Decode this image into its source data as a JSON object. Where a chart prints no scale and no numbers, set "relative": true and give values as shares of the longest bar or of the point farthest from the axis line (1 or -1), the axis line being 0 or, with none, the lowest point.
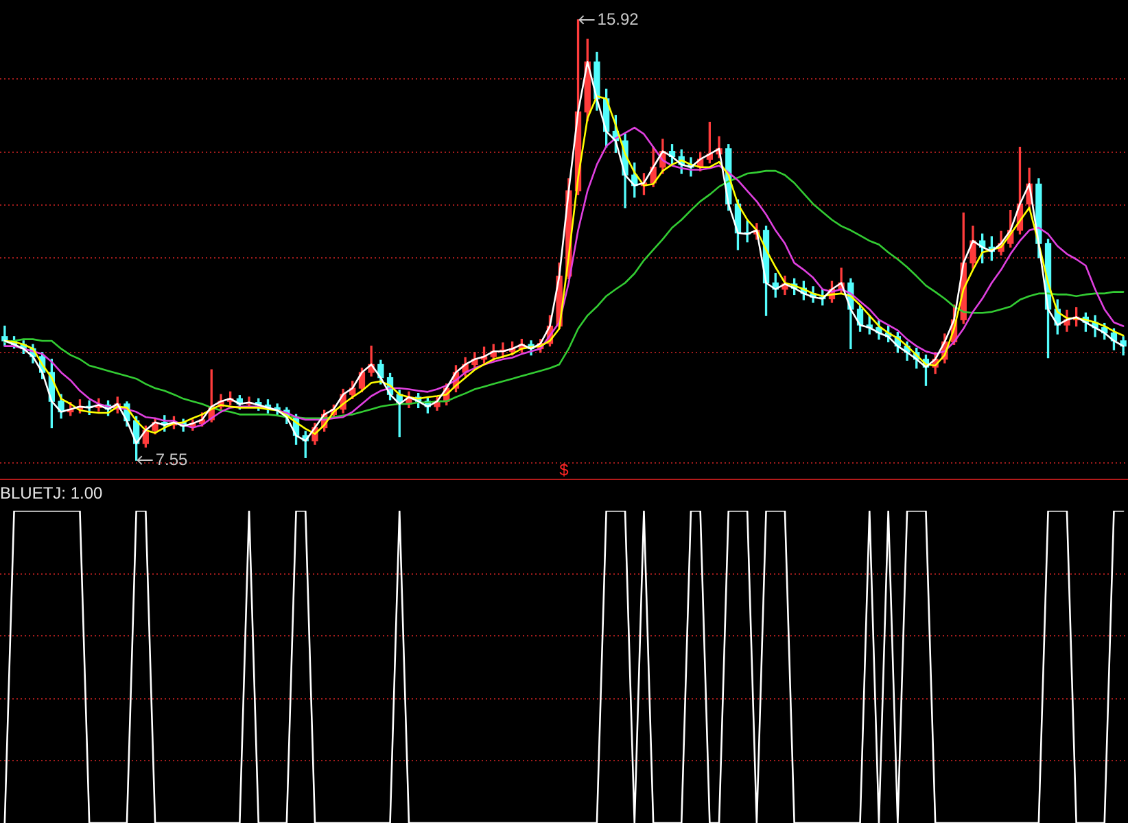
{
  "chart_data": [
    {
      "type": "candlestick",
      "categories": [
        null,
        null,
        null,
        null,
        null,
        null,
        null,
        null,
        null,
        null,
        null,
        null,
        null,
        null,
        null,
        null,
        null,
        null,
        null,
        null,
        null,
        null,
        null,
        null,
        null,
        null,
        null,
        null,
        null,
        null,
        null,
        null,
        null,
        null,
        null,
        null,
        null,
        null,
        null,
        null,
        null,
        null,
        null,
        null,
        null,
        null,
        null,
        null,
        null,
        null,
        null,
        null,
        null,
        null,
        null,
        null,
        null,
        null,
        null,
        null,
        null,
        null,
        null,
        null,
        null,
        null,
        null,
        null,
        null,
        null,
        null,
        null,
        null,
        null,
        null,
        null,
        null,
        null,
        null,
        null,
        null,
        null,
        null,
        null,
        null,
        null,
        null,
        null,
        null,
        null,
        null,
        null,
        null,
        null,
        null,
        null,
        null,
        null,
        null,
        null,
        null,
        null,
        null,
        null,
        null,
        null,
        null,
        null,
        null,
        null,
        null,
        null,
        null,
        null,
        null,
        null,
        null,
        null,
        null,
        null
      ],
      "ohlc": [
        [
          9.9,
          10.1,
          9.72,
          9.82
        ],
        [
          9.82,
          9.9,
          9.68,
          9.75
        ],
        [
          9.75,
          9.82,
          9.58,
          9.67
        ],
        [
          9.67,
          9.75,
          9.4,
          9.52
        ],
        [
          9.52,
          9.6,
          9.1,
          9.22
        ],
        [
          9.22,
          9.47,
          8.17,
          8.67
        ],
        [
          8.67,
          8.8,
          8.35,
          8.47
        ],
        [
          8.47,
          8.65,
          8.4,
          8.52
        ],
        [
          8.52,
          8.7,
          8.45,
          8.57
        ],
        [
          8.57,
          8.68,
          8.42,
          8.55
        ],
        [
          8.55,
          8.72,
          8.48,
          8.6
        ],
        [
          8.6,
          8.68,
          8.4,
          8.52
        ],
        [
          8.52,
          8.75,
          8.45,
          8.62
        ],
        [
          8.62,
          8.66,
          8.2,
          8.3
        ],
        [
          8.3,
          8.38,
          7.55,
          7.87
        ],
        [
          7.87,
          8.2,
          7.8,
          8.12
        ],
        [
          8.12,
          8.35,
          8.05,
          8.27
        ],
        [
          8.27,
          8.4,
          8.1,
          8.22
        ],
        [
          8.22,
          8.38,
          8.15,
          8.27
        ],
        [
          8.27,
          8.33,
          8.1,
          8.2
        ],
        [
          8.2,
          8.32,
          8.12,
          8.25
        ],
        [
          8.25,
          8.45,
          8.2,
          8.32
        ],
        [
          8.32,
          9.27,
          8.28,
          8.57
        ],
        [
          8.57,
          8.8,
          8.5,
          8.67
        ],
        [
          8.67,
          8.85,
          8.6,
          8.72
        ],
        [
          8.72,
          8.78,
          8.52,
          8.62
        ],
        [
          8.62,
          8.75,
          8.55,
          8.65
        ],
        [
          8.65,
          8.72,
          8.5,
          8.6
        ],
        [
          8.6,
          8.7,
          8.45,
          8.55
        ],
        [
          8.55,
          8.62,
          8.4,
          8.5
        ],
        [
          8.5,
          8.55,
          8.25,
          8.37
        ],
        [
          8.37,
          8.42,
          7.85,
          8.02
        ],
        [
          8.02,
          8.1,
          7.6,
          7.92
        ],
        [
          7.92,
          8.25,
          7.85,
          8.17
        ],
        [
          8.17,
          8.5,
          8.1,
          8.42
        ],
        [
          8.42,
          8.6,
          8.35,
          8.52
        ],
        [
          8.52,
          8.9,
          8.45,
          8.8
        ],
        [
          8.8,
          9.05,
          8.72,
          8.92
        ],
        [
          8.92,
          9.3,
          8.85,
          9.22
        ],
        [
          9.22,
          9.72,
          9.15,
          9.37
        ],
        [
          9.37,
          9.45,
          9.0,
          9.12
        ],
        [
          9.12,
          9.2,
          8.7,
          8.8
        ],
        [
          8.8,
          8.88,
          8.0,
          8.62
        ],
        [
          8.62,
          8.85,
          8.55,
          8.75
        ],
        [
          8.75,
          8.82,
          8.55,
          8.67
        ],
        [
          8.67,
          8.75,
          8.45,
          8.57
        ],
        [
          8.57,
          8.75,
          8.5,
          8.67
        ],
        [
          8.67,
          9.0,
          8.6,
          8.92
        ],
        [
          8.92,
          9.35,
          8.85,
          9.22
        ],
        [
          9.22,
          9.5,
          9.15,
          9.37
        ],
        [
          9.37,
          9.6,
          9.3,
          9.47
        ],
        [
          9.47,
          9.7,
          9.4,
          9.52
        ],
        [
          9.52,
          9.75,
          9.45,
          9.62
        ],
        [
          9.62,
          9.78,
          9.5,
          9.62
        ],
        [
          9.62,
          9.8,
          9.55,
          9.67
        ],
        [
          9.67,
          9.85,
          9.6,
          9.75
        ],
        [
          9.75,
          9.82,
          9.55,
          9.67
        ],
        [
          9.67,
          9.85,
          9.6,
          9.77
        ],
        [
          9.77,
          10.3,
          9.72,
          10.1
        ],
        [
          10.1,
          11.3,
          10.05,
          11.05
        ],
        [
          11.05,
          12.9,
          11.0,
          12.67
        ],
        [
          12.67,
          15.92,
          12.6,
          14.17
        ],
        [
          14.17,
          15.55,
          14.0,
          15.12
        ],
        [
          15.12,
          15.3,
          14.2,
          14.42
        ],
        [
          14.42,
          14.6,
          13.5,
          13.8
        ],
        [
          13.8,
          14.1,
          13.4,
          13.62
        ],
        [
          13.62,
          13.75,
          12.35,
          12.97
        ],
        [
          12.97,
          13.2,
          12.55,
          12.77
        ],
        [
          12.77,
          13.0,
          12.6,
          12.82
        ],
        [
          12.82,
          13.5,
          12.75,
          13.12
        ],
        [
          13.12,
          13.65,
          13.0,
          13.42
        ],
        [
          13.42,
          13.55,
          13.15,
          13.32
        ],
        [
          13.32,
          13.45,
          13.0,
          13.17
        ],
        [
          13.17,
          13.3,
          12.95,
          13.12
        ],
        [
          13.12,
          13.4,
          13.05,
          13.27
        ],
        [
          13.27,
          13.97,
          13.2,
          13.37
        ],
        [
          13.37,
          13.7,
          13.3,
          13.47
        ],
        [
          13.47,
          13.55,
          12.3,
          12.42
        ],
        [
          12.42,
          12.5,
          11.55,
          11.87
        ],
        [
          11.87,
          12.1,
          11.7,
          11.85
        ],
        [
          11.85,
          12.05,
          11.75,
          11.92
        ],
        [
          11.92,
          12.0,
          10.3,
          10.92
        ],
        [
          10.92,
          11.1,
          10.65,
          10.8
        ],
        [
          10.8,
          11.05,
          10.7,
          10.9
        ],
        [
          10.9,
          11.0,
          10.7,
          10.82
        ],
        [
          10.82,
          10.95,
          10.6,
          10.72
        ],
        [
          10.72,
          10.85,
          10.55,
          10.65
        ],
        [
          10.65,
          10.8,
          10.5,
          10.62
        ],
        [
          10.62,
          10.95,
          10.55,
          10.8
        ],
        [
          10.8,
          11.2,
          10.72,
          10.92
        ],
        [
          10.92,
          11.0,
          9.67,
          10.42
        ],
        [
          10.42,
          10.5,
          10.0,
          10.12
        ],
        [
          10.12,
          10.3,
          9.95,
          10.07
        ],
        [
          10.07,
          10.2,
          9.85,
          9.97
        ],
        [
          9.97,
          10.1,
          9.8,
          9.9
        ],
        [
          9.9,
          9.98,
          9.6,
          9.72
        ],
        [
          9.72,
          9.8,
          9.45,
          9.6
        ],
        [
          9.6,
          9.68,
          9.3,
          9.47
        ],
        [
          9.47,
          9.55,
          8.97,
          9.32
        ],
        [
          9.32,
          9.6,
          9.2,
          9.47
        ],
        [
          9.47,
          9.95,
          9.4,
          9.8
        ],
        [
          9.8,
          10.5,
          9.75,
          10.22
        ],
        [
          10.22,
          12.25,
          10.15,
          11.3
        ],
        [
          11.3,
          12.0,
          11.2,
          11.72
        ],
        [
          11.72,
          11.85,
          11.3,
          11.6
        ],
        [
          11.6,
          11.8,
          11.35,
          11.52
        ],
        [
          11.52,
          11.9,
          11.45,
          11.67
        ],
        [
          11.67,
          12.3,
          11.6,
          11.92
        ],
        [
          11.92,
          13.5,
          11.85,
          12.42
        ],
        [
          12.42,
          13.1,
          12.3,
          12.8
        ],
        [
          12.8,
          12.9,
          11.4,
          11.67
        ],
        [
          11.67,
          11.75,
          9.5,
          10.42
        ],
        [
          10.42,
          10.6,
          9.95,
          10.12
        ],
        [
          10.12,
          10.4,
          10.0,
          10.22
        ],
        [
          10.22,
          10.45,
          10.1,
          10.27
        ],
        [
          10.27,
          10.35,
          10.0,
          10.17
        ],
        [
          10.17,
          10.3,
          9.9,
          10.07
        ],
        [
          10.07,
          10.15,
          9.85,
          9.97
        ],
        [
          9.97,
          10.05,
          9.65,
          9.82
        ],
        [
          9.82,
          9.9,
          9.55,
          9.72
        ]
      ],
      "colors": [
        "#54fcfc",
        "#54fcfc",
        "#54fcfc",
        "#54fcfc",
        "#54fcfc",
        "#54fcfc",
        "#54fcfc",
        "#ff3c3c",
        "#ff3c3c",
        "#54fcfc",
        "#ff3c3c",
        "#54fcfc",
        "#ff3c3c",
        "#54fcfc",
        "#54fcfc",
        "#ff3c3c",
        "#ff3c3c",
        "#54fcfc",
        "#ff3c3c",
        "#54fcfc",
        "#ff3c3c",
        "#ff3c3c",
        "#ff3c3c",
        "#ff3c3c",
        "#ff3c3c",
        "#54fcfc",
        "#ff3c3c",
        "#54fcfc",
        "#54fcfc",
        "#54fcfc",
        "#54fcfc",
        "#54fcfc",
        "#54fcfc",
        "#ff3c3c",
        "#ff3c3c",
        "#ff3c3c",
        "#ff3c3c",
        "#ff3c3c",
        "#ff3c3c",
        "#ff3c3c",
        "#54fcfc",
        "#54fcfc",
        "#54fcfc",
        "#ff3c3c",
        "#54fcfc",
        "#54fcfc",
        "#ff3c3c",
        "#ff3c3c",
        "#ff3c3c",
        "#ff3c3c",
        "#ff3c3c",
        "#ff3c3c",
        "#ff3c3c",
        "#ff3c3c",
        "#ff3c3c",
        "#ff3c3c",
        "#54fcfc",
        "#ff3c3c",
        "#ff3c3c",
        "#ff3c3c",
        "#ff3c3c",
        "#ff3c3c",
        "#ff3c3c",
        "#54fcfc",
        "#54fcfc",
        "#54fcfc",
        "#54fcfc",
        "#54fcfc",
        "#ff3c3c",
        "#ff3c3c",
        "#ff3c3c",
        "#54fcfc",
        "#54fcfc",
        "#54fcfc",
        "#ff3c3c",
        "#ff3c3c",
        "#ff3c3c",
        "#54fcfc",
        "#54fcfc",
        "#54fcfc",
        "#ff3c3c",
        "#54fcfc",
        "#54fcfc",
        "#ff3c3c",
        "#54fcfc",
        "#54fcfc",
        "#54fcfc",
        "#54fcfc",
        "#ff3c3c",
        "#ff3c3c",
        "#54fcfc",
        "#54fcfc",
        "#54fcfc",
        "#54fcfc",
        "#54fcfc",
        "#54fcfc",
        "#54fcfc",
        "#54fcfc",
        "#54fcfc",
        "#ff3c3c",
        "#ff3c3c",
        "#ff3c3c",
        "#ff3c3c",
        "#ff3c3c",
        "#54fcfc",
        "#54fcfc",
        "#ff3c3c",
        "#ff3c3c",
        "#ff3c3c",
        "#ff3c3c",
        "#54fcfc",
        "#54fcfc",
        "#54fcfc",
        "#ff3c3c",
        "#ff3c3c",
        "#54fcfc",
        "#54fcfc",
        "#54fcfc",
        "#54fcfc",
        "#54fcfc"
      ],
      "series": [
        {
          "type": "line",
          "color": "#ffffff",
          "values": [
            9.82,
            9.75,
            9.67,
            9.52,
            9.22,
            8.67,
            8.47,
            8.52,
            8.57,
            8.55,
            8.6,
            8.52,
            8.62,
            8.3,
            7.87,
            8.12,
            8.27,
            8.22,
            8.27,
            8.2,
            8.25,
            8.32,
            8.57,
            8.67,
            8.72,
            8.62,
            8.65,
            8.6,
            8.55,
            8.5,
            8.37,
            8.02,
            7.92,
            8.17,
            8.42,
            8.52,
            8.8,
            8.92,
            9.22,
            9.37,
            9.12,
            8.8,
            8.62,
            8.75,
            8.67,
            8.57,
            8.67,
            8.92,
            9.22,
            9.37,
            9.47,
            9.52,
            9.62,
            9.62,
            9.67,
            9.75,
            9.67,
            9.77,
            10.1,
            11.05,
            12.67,
            14.17,
            15.12,
            14.42,
            13.8,
            13.62,
            12.97,
            12.77,
            12.82,
            13.12,
            13.42,
            13.32,
            13.17,
            13.12,
            13.27,
            13.37,
            13.47,
            12.42,
            11.87,
            11.85,
            11.92,
            10.92,
            10.8,
            10.9,
            10.82,
            10.72,
            10.65,
            10.62,
            10.8,
            10.92,
            10.42,
            10.12,
            10.07,
            9.97,
            9.9,
            9.72,
            9.6,
            9.47,
            9.32,
            9.47,
            9.8,
            10.22,
            11.3,
            11.72,
            11.6,
            11.52,
            11.67,
            11.92,
            12.42,
            12.8,
            11.67,
            10.42,
            10.12,
            10.22,
            10.27,
            10.17,
            10.07,
            9.97,
            9.82,
            9.72
          ]
        },
        {
          "type": "line",
          "color": "#ffff00",
          "values": [
            9.82,
            9.8,
            9.75,
            9.67,
            9.37,
            9.12,
            8.72,
            8.62,
            8.5,
            8.47,
            8.45,
            8.45,
            8.57,
            8.55,
            8.3,
            8.12,
            8.07,
            8.17,
            8.25,
            8.27,
            8.35,
            8.42,
            8.52,
            8.6,
            8.57,
            8.55,
            8.55,
            8.55,
            8.52,
            8.5,
            8.4,
            8.27,
            8.15,
            8.05,
            8.22,
            8.47,
            8.62,
            8.75,
            8.87,
            9.02,
            9.05,
            8.97,
            8.8,
            8.75,
            8.72,
            8.75,
            8.77,
            8.8,
            8.97,
            9.12,
            9.27,
            9.37,
            9.47,
            9.52,
            9.57,
            9.67,
            9.7,
            9.72,
            9.82,
            10.05,
            11.42,
            12.92,
            14.05,
            14.47,
            14.42,
            13.92,
            13.37,
            13.02,
            12.77,
            12.8,
            13.05,
            13.17,
            13.25,
            13.17,
            13.12,
            13.12,
            13.22,
            12.97,
            12.42,
            12.12,
            11.92,
            11.55,
            11.22,
            10.92,
            10.87,
            10.8,
            10.72,
            10.67,
            10.7,
            10.72,
            10.67,
            10.5,
            10.3,
            10.1,
            9.97,
            9.87,
            9.72,
            9.55,
            9.37,
            9.35,
            9.55,
            10.05,
            10.8,
            11.17,
            11.5,
            11.55,
            11.6,
            11.85,
            12.1,
            12.35,
            11.67,
            10.92,
            10.37,
            10.25,
            10.25,
            10.22,
            10.17,
            10.1,
            10.0,
            9.92
          ]
        },
        {
          "type": "line",
          "color": "#e040e0",
          "values": [
            9.72,
            9.72,
            9.67,
            9.62,
            9.57,
            9.42,
            9.22,
            9.07,
            8.87,
            8.72,
            8.62,
            8.57,
            8.55,
            8.52,
            8.47,
            8.37,
            8.35,
            8.3,
            8.3,
            8.22,
            8.17,
            8.22,
            8.35,
            8.47,
            8.55,
            8.57,
            8.57,
            8.57,
            8.55,
            8.5,
            8.45,
            8.37,
            8.32,
            8.32,
            8.32,
            8.35,
            8.37,
            8.47,
            8.62,
            8.77,
            8.87,
            8.92,
            8.92,
            8.9,
            8.87,
            8.85,
            8.9,
            8.97,
            9.07,
            9.22,
            9.3,
            9.37,
            9.42,
            9.47,
            9.5,
            9.57,
            9.62,
            9.67,
            9.92,
            10.17,
            10.92,
            11.92,
            12.67,
            13.17,
            13.52,
            13.67,
            13.77,
            13.87,
            13.75,
            13.5,
            13.25,
            13.15,
            13.1,
            13.07,
            13.07,
            13.1,
            13.15,
            13.02,
            12.87,
            12.67,
            12.47,
            12.22,
            11.92,
            11.67,
            11.3,
            11.17,
            11.02,
            10.8,
            10.75,
            10.8,
            10.72,
            10.57,
            10.42,
            10.22,
            10.12,
            10.02,
            9.85,
            9.72,
            9.62,
            9.57,
            9.62,
            9.8,
            10.05,
            10.37,
            10.62,
            10.92,
            11.17,
            11.47,
            11.72,
            11.92,
            11.97,
            11.85,
            11.62,
            11.47,
            11.37,
            11.25,
            10.8,
            10.42,
            10.17,
            10.1
          ]
        },
        {
          "type": "line",
          "color": "#33cc33",
          "values": [
            9.8,
            9.82,
            9.85,
            9.85,
            9.82,
            9.82,
            9.67,
            9.55,
            9.47,
            9.35,
            9.3,
            9.25,
            9.2,
            9.15,
            9.1,
            9.0,
            8.92,
            8.87,
            8.8,
            8.72,
            8.67,
            8.62,
            8.55,
            8.5,
            8.47,
            8.42,
            8.42,
            8.42,
            8.42,
            8.4,
            8.37,
            8.37,
            8.35,
            8.35,
            8.35,
            8.37,
            8.4,
            8.42,
            8.47,
            8.52,
            8.57,
            8.6,
            8.62,
            8.62,
            8.65,
            8.65,
            8.67,
            8.67,
            8.75,
            8.82,
            8.9,
            8.95,
            9.0,
            9.05,
            9.1,
            9.15,
            9.2,
            9.25,
            9.3,
            9.37,
            9.67,
            10.05,
            10.3,
            10.47,
            10.67,
            10.8,
            10.92,
            11.1,
            11.35,
            11.55,
            11.75,
            11.97,
            12.12,
            12.3,
            12.47,
            12.6,
            12.75,
            12.85,
            12.92,
            13.0,
            13.02,
            13.05,
            13.05,
            12.97,
            12.82,
            12.62,
            12.42,
            12.27,
            12.12,
            12.0,
            11.92,
            11.82,
            11.72,
            11.65,
            11.5,
            11.37,
            11.22,
            11.05,
            10.87,
            10.75,
            10.62,
            10.47,
            10.37,
            10.35,
            10.35,
            10.37,
            10.42,
            10.47,
            10.6,
            10.67,
            10.72,
            10.72,
            10.7,
            10.7,
            10.67,
            10.7,
            10.72,
            10.72,
            10.75,
            10.75
          ]
        }
      ],
      "yticks": [
        {
          "value": 7.5,
          "label": null
        },
        {
          "value": 9.6,
          "label": null
        },
        {
          "value": 11.4,
          "label": null
        },
        {
          "value": 12.4,
          "label": null
        },
        {
          "value": 13.4,
          "label": null
        },
        {
          "value": 14.8,
          "label": null
        }
      ],
      "grid": "y",
      "tick_labels": false,
      "annotations": [
        "15.92",
        "7.55",
        "$"
      ]
    },
    {
      "type": "line",
      "title": "BLUETJ: 1.00",
      "categories": [
        null,
        null,
        null,
        null,
        null,
        null,
        null,
        null,
        null,
        null,
        null,
        null,
        null,
        null,
        null,
        null,
        null,
        null,
        null,
        null,
        null,
        null,
        null,
        null,
        null,
        null,
        null,
        null,
        null,
        null,
        null,
        null,
        null,
        null,
        null,
        null,
        null,
        null,
        null,
        null,
        null,
        null,
        null,
        null,
        null,
        null,
        null,
        null,
        null,
        null,
        null,
        null,
        null,
        null,
        null,
        null,
        null,
        null,
        null,
        null,
        null,
        null,
        null,
        null,
        null,
        null,
        null,
        null,
        null,
        null,
        null,
        null,
        null,
        null,
        null,
        null,
        null,
        null,
        null,
        null,
        null,
        null,
        null,
        null,
        null,
        null,
        null,
        null,
        null,
        null,
        null,
        null,
        null,
        null,
        null,
        null,
        null,
        null,
        null,
        null,
        null,
        null,
        null,
        null,
        null,
        null,
        null,
        null,
        null,
        null,
        null,
        null,
        null,
        null,
        null,
        null,
        null,
        null,
        null,
        null
      ],
      "series": [
        {
          "color": "#ffffff",
          "values": [
            0,
            1,
            1,
            1,
            1,
            1,
            1,
            1,
            1,
            0,
            0,
            0,
            0,
            0,
            1,
            1,
            0,
            0,
            0,
            0,
            0,
            0,
            0,
            0,
            0,
            0,
            1,
            0,
            0,
            0,
            0,
            1,
            1,
            0,
            0,
            0,
            0,
            0,
            0,
            0,
            0,
            0,
            1,
            0,
            0,
            0,
            0,
            0,
            0,
            0,
            0,
            0,
            0,
            0,
            0,
            0,
            0,
            0,
            0,
            0,
            0,
            0,
            0,
            0,
            1,
            1,
            1,
            0,
            1,
            0,
            0,
            0,
            0,
            1,
            1,
            0,
            0,
            1,
            1,
            1,
            0,
            1,
            1,
            1,
            0,
            0,
            0,
            0,
            0,
            0,
            0,
            0,
            1,
            0,
            1,
            0,
            1,
            1,
            1,
            0,
            0,
            0,
            0,
            0,
            0,
            0,
            0,
            0,
            0,
            0,
            0,
            1,
            1,
            1,
            0,
            0,
            0,
            0,
            1,
            1
          ]
        }
      ],
      "relative": true,
      "ref_lines": [
        {
          "axis": "y",
          "value": 0.2,
          "color": "#a31c1c",
          "line_style": "dotted"
        },
        {
          "axis": "y",
          "value": 0.4,
          "color": "#a31c1c",
          "line_style": "dotted"
        },
        {
          "axis": "y",
          "value": 0.6,
          "color": "#a31c1c",
          "line_style": "dotted"
        },
        {
          "axis": "y",
          "value": 0.8,
          "color": "#a31c1c",
          "line_style": "dotted"
        }
      ],
      "tick_labels": false
    }
  ]
}
